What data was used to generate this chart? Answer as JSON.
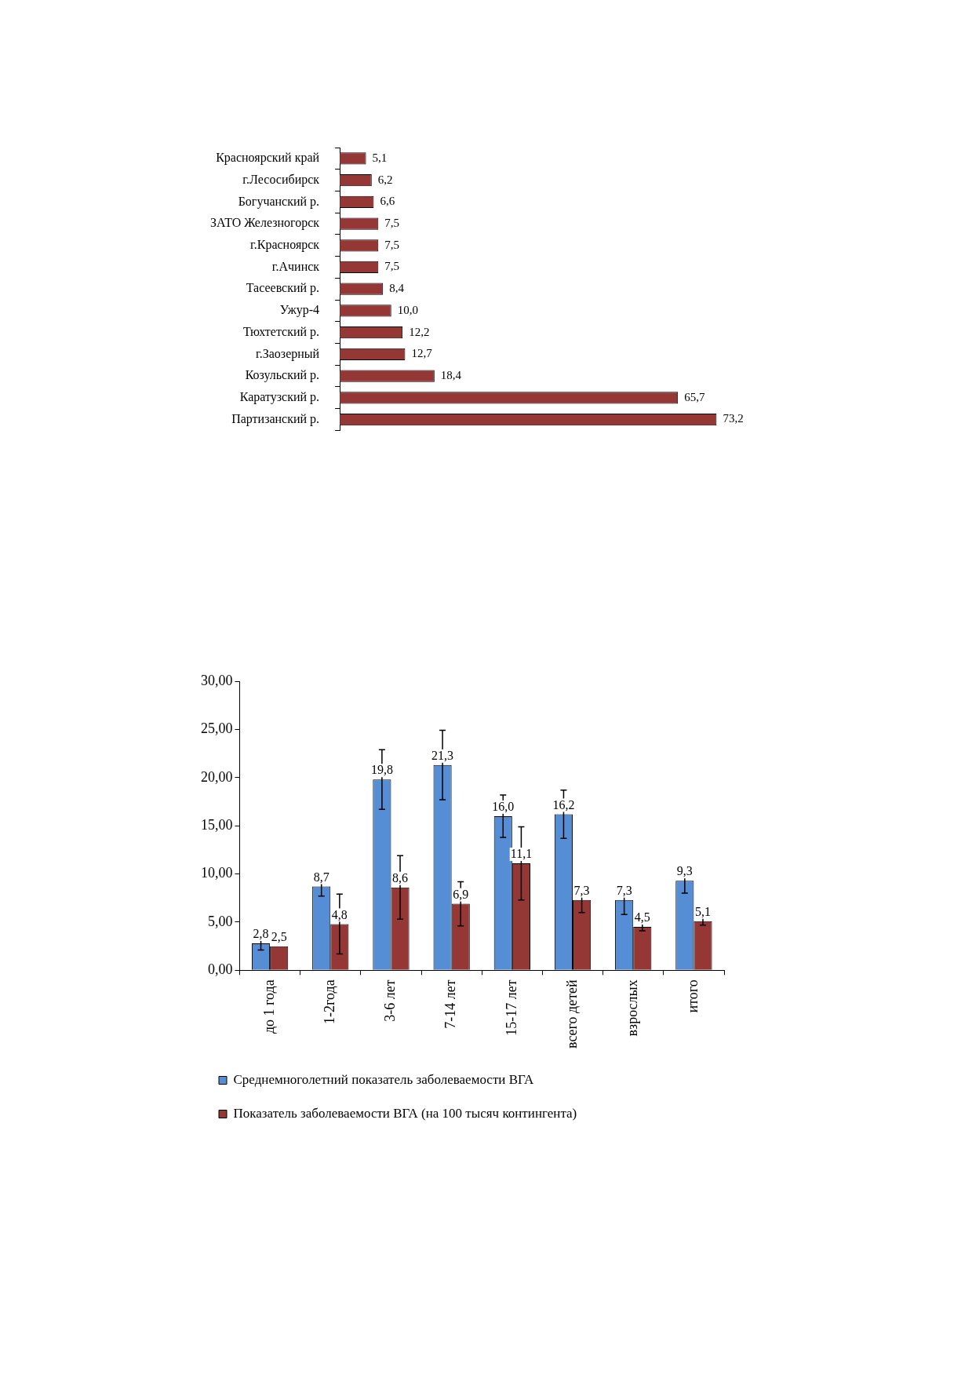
{
  "chart_data": [
    {
      "type": "bar",
      "orientation": "horizontal",
      "categories": [
        "Красноярский край",
        "г.Лесосибирск",
        "Богучанский р.",
        "ЗАТО Железногорск",
        "г.Красноярск",
        "г.Ачинск",
        "Тасеевский р.",
        "Ужур-4",
        "Тюхтетский р.",
        "г.Заозерный",
        "Козульский р.",
        "Каратузский р.",
        "Партизанский р."
      ],
      "color": "#953735",
      "values": [
        5.1,
        6.2,
        6.6,
        7.5,
        7.5,
        7.5,
        8.4,
        10.0,
        12.2,
        12.7,
        18.4,
        65.7,
        73.2
      ],
      "value_labels": [
        "5,1",
        "6,2",
        "6,6",
        "7,5",
        "7,5",
        "7,5",
        "8,4",
        "10,0",
        "12,2",
        "12,7",
        "18,4",
        "65,7",
        "73,2"
      ]
    },
    {
      "type": "bar",
      "categories": [
        "до 1 года",
        "1-2года",
        "3-6 лет",
        "7-14 лет",
        "15-17 лет",
        "всего детей",
        "взрослых",
        "итого"
      ],
      "series": [
        {
          "name": "Среднемноголетний показатель заболеваемости ВГА",
          "color": "#558ed5",
          "values": [
            2.8,
            8.7,
            19.8,
            21.3,
            16.0,
            16.2,
            7.3,
            9.3
          ],
          "errors": [
            0.7,
            1.0,
            3.1,
            3.6,
            2.2,
            2.5,
            1.5,
            1.3
          ],
          "value_labels": [
            "2,8",
            "8,7",
            "19,8",
            "21,3",
            "16,0",
            "16,2",
            "7,3",
            "9,3"
          ]
        },
        {
          "name": "Показатель заболеваемости ВГА (на 100 тысяч контингента)",
          "color": "#953735",
          "values": [
            2.5,
            4.8,
            8.6,
            6.9,
            11.1,
            7.3,
            4.5,
            5.1
          ],
          "errors": [
            null,
            3.1,
            3.3,
            2.3,
            3.8,
            1.3,
            0.4,
            0.4
          ],
          "value_labels": [
            "2,5",
            "4,8",
            "8,6",
            "6,9",
            "11,1",
            "7,3",
            "4,5",
            "5,1"
          ]
        }
      ],
      "ylim": [
        0,
        30
      ],
      "yticks": [
        {
          "value": 0,
          "label": "0,00"
        },
        {
          "value": 5,
          "label": "5,00"
        },
        {
          "value": 10,
          "label": "10,00"
        },
        {
          "value": 15,
          "label": "15,00"
        },
        {
          "value": 20,
          "label": "20,00"
        },
        {
          "value": 25,
          "label": "25,00"
        },
        {
          "value": 30,
          "label": "30,00"
        }
      ],
      "legend": "bottom"
    }
  ]
}
